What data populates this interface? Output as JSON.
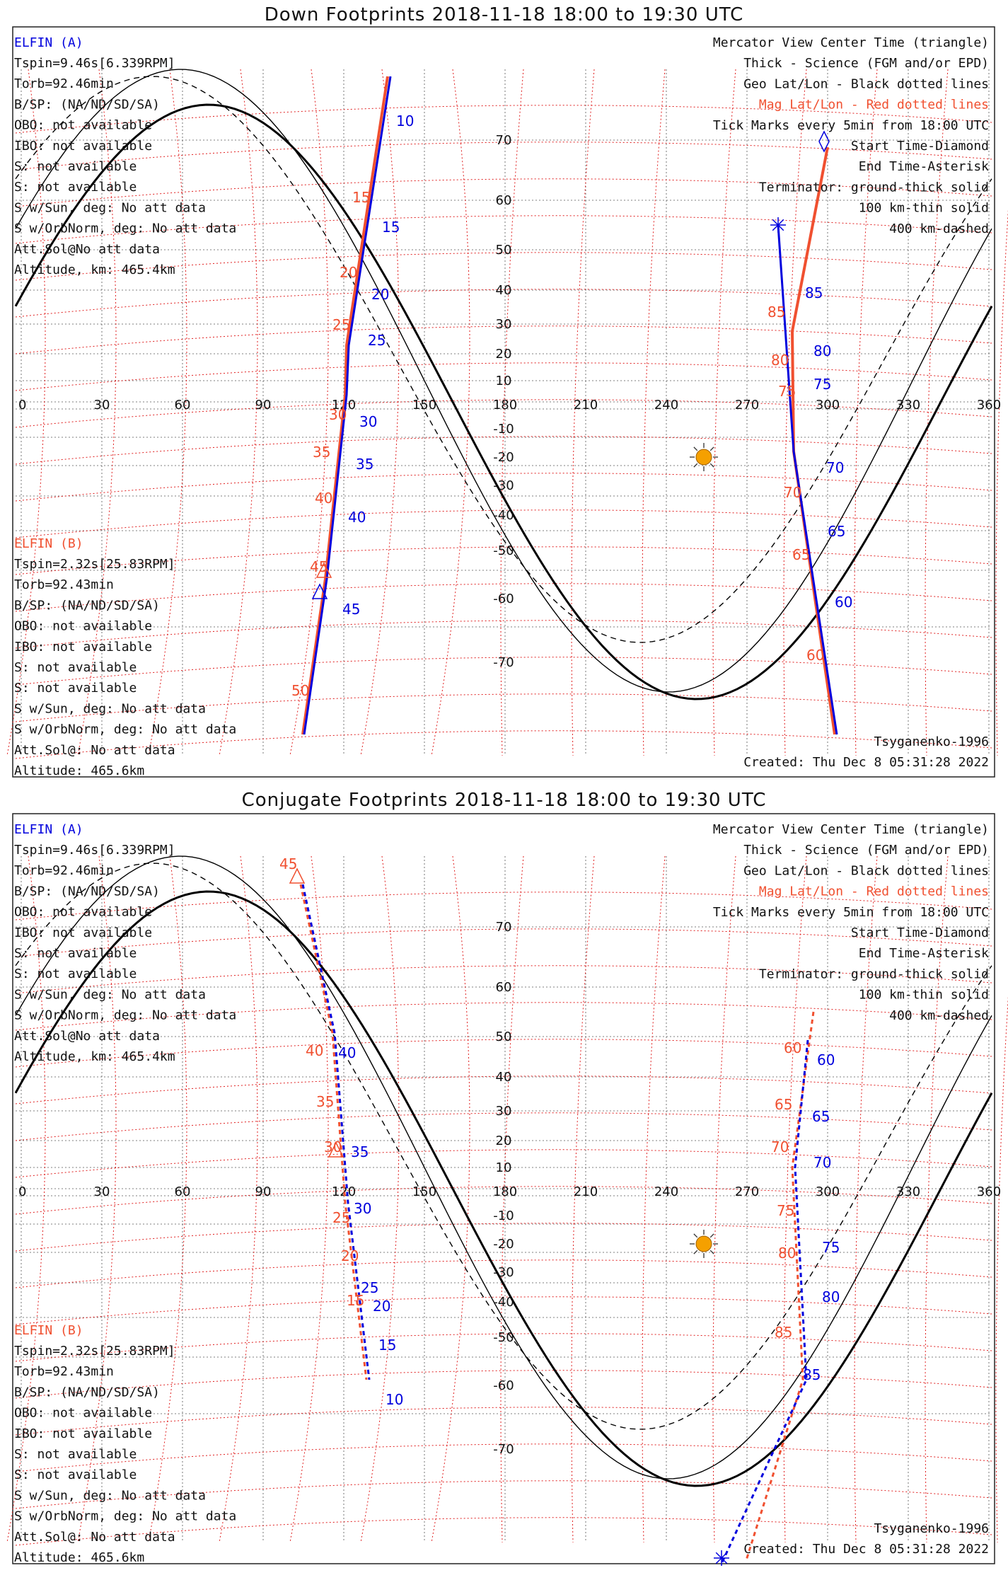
{
  "panels": [
    {
      "title": "Down Footprints 2018-11-18 18:00 to 19:30 UTC",
      "elfin_a": {
        "name": "ELFIN (A)",
        "lines": [
          "Tspin=9.46s[6.339RPM]",
          "Torb=92.46min",
          "B/SP: (NA/ND/SD/SA)",
          "OBO: not available",
          "IBO: not available",
          "S: not available",
          "S: not available",
          "S w/Sun, deg: No att data",
          "S w/OrbNorm, deg: No att data",
          "Att.Sol@No att data",
          "Altitude, km: 465.4km"
        ]
      },
      "elfin_b": {
        "name": "ELFIN (B)",
        "lines": [
          "Tspin=2.32s[25.83RPM]",
          "Torb=92.43min",
          "B/SP: (NA/ND/SD/SA)",
          "OBO: not available",
          "IBO: not available",
          "S: not available",
          "S: not available",
          "S w/Sun, deg: No att data",
          "S w/OrbNorm, deg: No att data",
          "Att.Sol@: No att data",
          "Altitude: 465.6km"
        ]
      },
      "legend": [
        "Mercator View Center Time (triangle)",
        "Thick - Science (FGM and/or EPD)",
        "Geo Lat/Lon - Black dotted lines",
        "Mag Lat/Lon - Red dotted lines",
        "Tick Marks every 5min from 18:00 UTC",
        "Start Time-Diamond",
        "End Time-Asterisk",
        "Terminator: ground-thick solid",
        "100 km-thin solid",
        "400 km-dashed"
      ],
      "model": "Tsyganenko-1996",
      "created": "Created: Thu Dec  8 05:31:28 2022",
      "track_a_ticks": [
        "10",
        "15",
        "20",
        "25",
        "30",
        "35",
        "40",
        "45",
        "60",
        "65",
        "70",
        "75",
        "80",
        "85"
      ],
      "track_b_ticks": [
        "15",
        "20",
        "25",
        "30",
        "35",
        "40",
        "45",
        "50",
        "60",
        "65",
        "70",
        "75",
        "80",
        "85"
      ]
    },
    {
      "title": "Conjugate Footprints 2018-11-18 18:00 to 19:30 UTC",
      "elfin_a": {
        "name": "ELFIN (A)",
        "lines": [
          "Tspin=9.46s[6.339RPM]",
          "Torb=92.46min",
          "B/SP: (NA/ND/SD/SA)",
          "OBO: not available",
          "IBO: not available",
          "S: not available",
          "S: not available",
          "S w/Sun, deg: No att data",
          "S w/OrbNorm, deg: No att data",
          "Att.Sol@No att data",
          "Altitude, km: 465.4km"
        ]
      },
      "elfin_b": {
        "name": "ELFIN (B)",
        "lines": [
          "Tspin=2.32s[25.83RPM]",
          "Torb=92.43min",
          "B/SP: (NA/ND/SD/SA)",
          "OBO: not available",
          "IBO: not available",
          "S: not available",
          "S: not available",
          "S w/Sun, deg: No att data",
          "S w/OrbNorm, deg: No att data",
          "Att.Sol@: No att data",
          "Altitude: 465.6km"
        ]
      },
      "legend": [
        "Mercator View Center Time (triangle)",
        "Thick - Science (FGM and/or EPD)",
        "Geo Lat/Lon - Black dotted lines",
        "Mag Lat/Lon - Red dotted lines",
        "Tick Marks every 5min from 18:00 UTC",
        "Start Time-Diamond",
        "End Time-Asterisk",
        "Terminator: ground-thick solid",
        "100 km-thin solid",
        "400 km-dashed"
      ],
      "model": "Tsyganenko-1996",
      "created": "Created: Thu Dec  8 05:31:28 2022",
      "track_a_ticks": [
        "40",
        "35",
        "30",
        "25",
        "20",
        "15",
        "10",
        "60",
        "65",
        "70",
        "75",
        "80",
        "85"
      ],
      "track_b_ticks": [
        "45",
        "40",
        "35",
        "30",
        "25",
        "20",
        "15",
        "60",
        "65",
        "70",
        "75",
        "80",
        "85"
      ]
    }
  ],
  "axes": {
    "lon_ticks": [
      "0",
      "30",
      "60",
      "90",
      "120",
      "150",
      "180",
      "210",
      "240",
      "270",
      "300",
      "330",
      "360"
    ],
    "lat_ticks": [
      "70",
      "60",
      "50",
      "40",
      "30",
      "20",
      "10",
      "-10",
      "-20",
      "-30",
      "-40",
      "-50",
      "-60",
      "-70"
    ]
  },
  "colors": {
    "elfin_a": "#0000dd",
    "elfin_b": "#f05030",
    "sun": "#f5a000",
    "grid_mag": "#e02020"
  }
}
